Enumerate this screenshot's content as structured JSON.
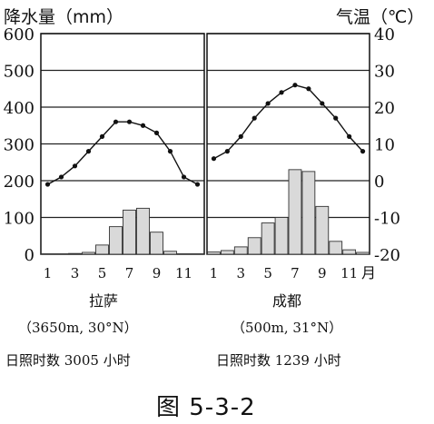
{
  "chart_data": [
    {
      "type": "bar+line",
      "city": "拉萨",
      "coords": "（3650m, 30°N）",
      "sunshine": "日照时数 3005 小时",
      "months": [
        1,
        2,
        3,
        4,
        5,
        6,
        7,
        8,
        9,
        10,
        11,
        12
      ],
      "precip_mm": [
        1,
        1,
        2,
        5,
        25,
        75,
        120,
        125,
        60,
        8,
        1,
        1
      ],
      "temp_c": [
        -1,
        1,
        4,
        8,
        12,
        16,
        16,
        15,
        13,
        8,
        1,
        -1
      ]
    },
    {
      "type": "bar+line",
      "city": "成都",
      "coords": "（500m, 31°N）",
      "sunshine": "日照时数 1239 小时",
      "months": [
        1,
        2,
        3,
        4,
        5,
        6,
        7,
        8,
        9,
        10,
        11,
        12
      ],
      "precip_mm": [
        6,
        10,
        20,
        45,
        85,
        100,
        230,
        225,
        130,
        35,
        12,
        5
      ],
      "temp_c": [
        6,
        8,
        12,
        17,
        21,
        24,
        26,
        25,
        21,
        17,
        12,
        8
      ]
    }
  ],
  "axes": {
    "left_title": "降水量（mm）",
    "right_title": "气温（℃）",
    "left_ticks": [
      0,
      100,
      200,
      300,
      400,
      500,
      600
    ],
    "right_ticks": [
      -20,
      -10,
      0,
      10,
      20,
      30,
      40
    ],
    "x_ticks_left": [
      "1",
      "3",
      "5",
      "7",
      "9",
      "11"
    ],
    "x_ticks_right": [
      "1",
      "3",
      "5",
      "7",
      "9",
      "11"
    ],
    "x_unit": "月",
    "ylim_precip": [
      0,
      600
    ],
    "ylim_temp": [
      -20,
      40
    ]
  },
  "caption": "图 5-3-2"
}
